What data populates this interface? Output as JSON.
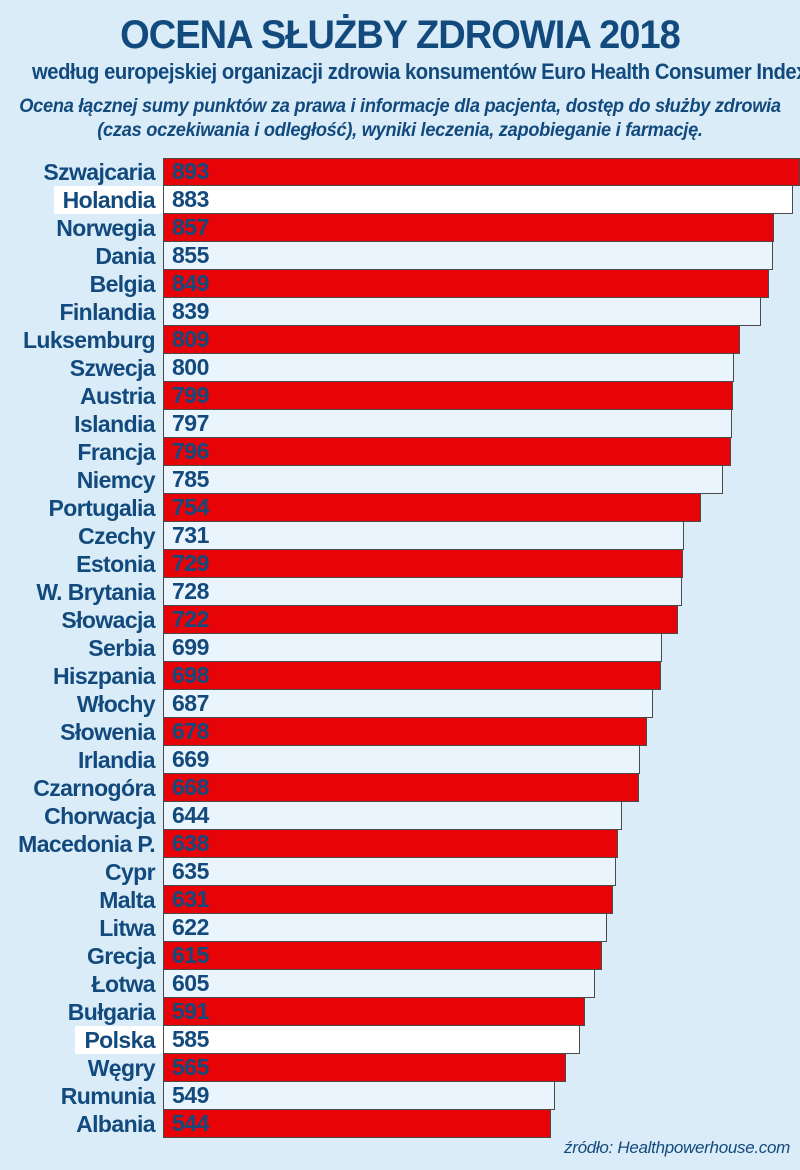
{
  "header": {
    "title": "OCENA SŁUŻBY ZDROWIA 2018",
    "subtitle": "według europejskiej organizacji zdrowia konsumentów Euro Health Consumer Index",
    "description_line1": "Ocena łącznej sumy punktów za prawa i informacje dla pacjenta, dostęp do służby zdrowia",
    "description_line2": "(czas oczekiwania i odległość), wyniki leczenia, zapobieganie i farmację."
  },
  "footer": {
    "source": "źródło: Healthpowerhouse.com"
  },
  "colors": {
    "background": "#d9ecf8",
    "navy_text": "#134a7d",
    "bar_red": "#e60408",
    "bar_light": "#e9f4fc",
    "bar_highlight_white": "#ffffff",
    "bar_border": "#4a4a4a"
  },
  "chart_data": {
    "type": "bar",
    "orientation": "horizontal",
    "title": "OCENA SŁUŻBY ZDROWIA 2018",
    "subtitle": "według europejskiej organizacji zdrowia konsumentów Euro Health Consumer Index",
    "value_axis_max": 893,
    "grid": false,
    "legend": false,
    "bar_color_pattern": "alternating red / light-blue by rank, white for highlighted",
    "highlighted": [
      "Holandia",
      "Polska"
    ],
    "categories": [
      "Szwajcaria",
      "Holandia",
      "Norwegia",
      "Dania",
      "Belgia",
      "Finlandia",
      "Luksemburg",
      "Szwecja",
      "Austria",
      "Islandia",
      "Francja",
      "Niemcy",
      "Portugalia",
      "Czechy",
      "Estonia",
      "W. Brytania",
      "Słowacja",
      "Serbia",
      "Hiszpania",
      "Włochy",
      "Słowenia",
      "Irlandia",
      "Czarnogóra",
      "Chorwacja",
      "Macedonia P.",
      "Cypr",
      "Malta",
      "Litwa",
      "Grecja",
      "Łotwa",
      "Bułgaria",
      "Polska",
      "Węgry",
      "Rumunia",
      "Albania"
    ],
    "values": [
      893,
      883,
      857,
      855,
      849,
      839,
      809,
      800,
      799,
      797,
      796,
      785,
      754,
      731,
      729,
      728,
      722,
      699,
      698,
      687,
      678,
      669,
      668,
      644,
      638,
      635,
      631,
      622,
      615,
      605,
      591,
      585,
      565,
      549,
      544
    ],
    "source": "źródło: Healthpowerhouse.com"
  }
}
